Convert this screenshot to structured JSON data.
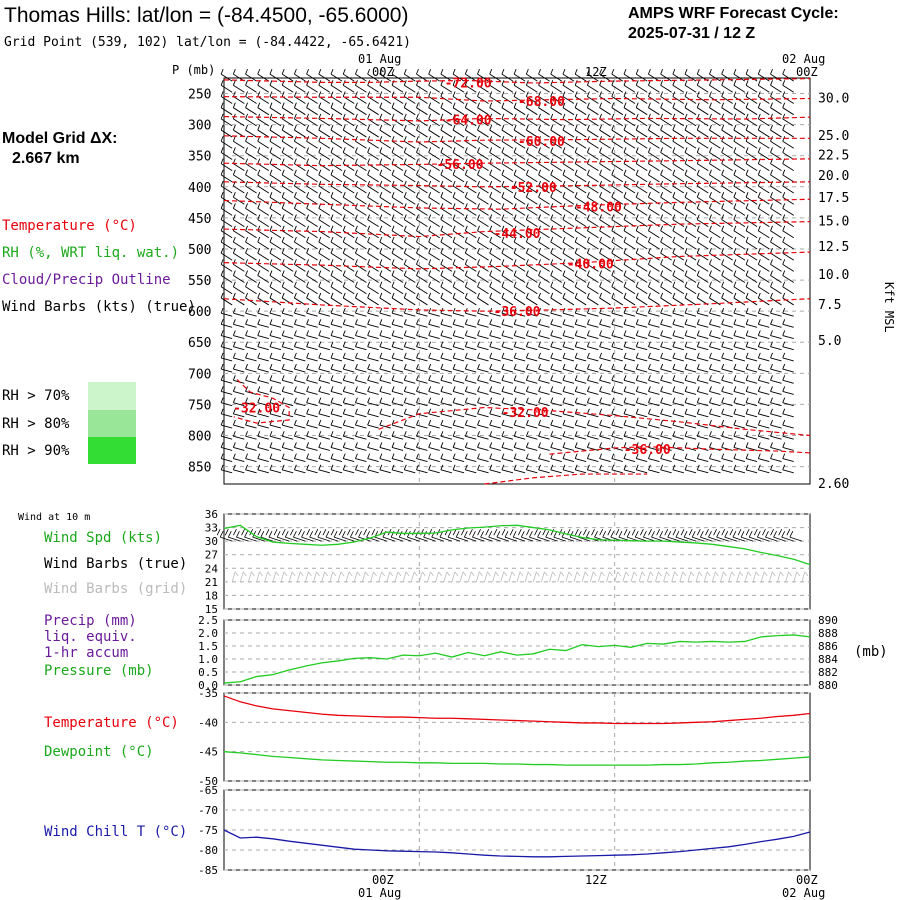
{
  "header": {
    "title": "Thomas Hills:  lat/lon = (-84.4500, -65.6000)",
    "subtitle": "Grid Point (539, 102) lat/lon = (-84.4422, -65.6421)",
    "cycle_line1": "AMPS WRF Forecast Cycle:",
    "cycle_line2": "2025-07-31 / 12  Z",
    "grid_label1": "Model Grid ΔX:",
    "grid_label2": "2.667 km"
  },
  "time_axis": {
    "top_date_mid": "01 Aug",
    "top_date_right": "02 Aug",
    "tick_labels": [
      "00Z",
      "12Z",
      "00Z"
    ],
    "bottom_date_mid": "01 Aug",
    "bottom_date_right": "02 Aug"
  },
  "legend": {
    "temperature": "Temperature (°C)",
    "rh": "RH (%, WRT liq. wat.)",
    "cloud": "Cloud/Precip Outline",
    "wind": "Wind Barbs (kts) (true)",
    "rh70": "RH > 70%",
    "rh80": "RH > 80%",
    "rh90": "RH > 90%",
    "colors": {
      "temperature": "#e8000b",
      "rh": "#1ca81c",
      "cloud": "#6a1b9a",
      "rh70": "#ccf5cc",
      "rh80": "#99e699",
      "rh90": "#33dd33",
      "pressure": "#22cc22",
      "dewpoint": "#22cc22",
      "windchill": "#1a1aa8",
      "windspd": "#22cc22",
      "grid": "#bbbbbb"
    }
  },
  "chart_data": [
    {
      "type": "line",
      "title": "",
      "panel": "upper_air_cross_section",
      "ylabel": "P (mb)",
      "y2label": "Kft MSL",
      "y_ticks": [
        250,
        300,
        350,
        400,
        450,
        500,
        550,
        600,
        650,
        700,
        750,
        800,
        850
      ],
      "y_range": [
        225,
        878
      ],
      "y2_ticks": [
        "30.0",
        "25.0",
        "22.5",
        "20.0",
        "17.5",
        "15.0",
        "12.5",
        "10.0",
        "7.5",
        "5.0",
        "2.60"
      ],
      "y2_pressure": [
        258,
        318,
        350,
        383,
        418,
        456,
        497,
        542,
        590,
        648,
        878
      ],
      "x_hours_range": [
        -12,
        24
      ],
      "temperature_contours": [
        {
          "label": "-72.00",
          "x": [
            -12,
            -6,
            -3,
            0,
            3,
            7,
            12,
            18,
            24
          ],
          "p": [
            228,
            232,
            232,
            230,
            229,
            233,
            230,
            228,
            226
          ],
          "lx": 3,
          "lp": 232
        },
        {
          "label": "-68.00",
          "x": [
            -12,
            -6,
            0,
            4,
            8,
            12,
            18,
            24
          ],
          "p": [
            255,
            256,
            256,
            262,
            260,
            258,
            260,
            258
          ],
          "lx": 7.5,
          "lp": 262
        },
        {
          "label": "-64.00",
          "x": [
            -12,
            -6,
            0,
            4,
            9,
            14,
            20,
            24
          ],
          "p": [
            287,
            290,
            294,
            290,
            292,
            290,
            291,
            288
          ],
          "lx": 3,
          "lp": 292
        },
        {
          "label": "-60.00",
          "x": [
            -12,
            -6,
            0,
            4,
            10,
            16,
            24
          ],
          "p": [
            318,
            322,
            328,
            325,
            324,
            322,
            322
          ],
          "lx": 7.5,
          "lp": 326
        },
        {
          "label": "-56.00",
          "x": [
            -12,
            -6,
            0,
            4,
            10,
            16,
            24
          ],
          "p": [
            362,
            366,
            364,
            362,
            360,
            358,
            355
          ],
          "lx": 2.5,
          "lp": 363
        },
        {
          "label": "-52.00",
          "x": [
            -12,
            -6,
            0,
            4,
            10,
            16,
            24
          ],
          "p": [
            392,
            396,
            398,
            400,
            398,
            395,
            392
          ],
          "lx": 7,
          "lp": 400
        },
        {
          "label": "-48.00",
          "x": [
            -12,
            -6,
            0,
            5,
            10,
            16,
            24
          ],
          "p": [
            422,
            428,
            434,
            436,
            430,
            425,
            420
          ],
          "lx": 11,
          "lp": 432
        },
        {
          "label": "-44.00",
          "x": [
            -12,
            -6,
            0,
            4,
            10,
            16,
            24
          ],
          "p": [
            468,
            472,
            480,
            472,
            466,
            460,
            456
          ],
          "lx": 6,
          "lp": 474
        },
        {
          "label": "-40.00",
          "x": [
            -12,
            -6,
            0,
            5,
            10,
            16,
            24
          ],
          "p": [
            522,
            526,
            532,
            528,
            522,
            512,
            505
          ],
          "lx": 10.5,
          "lp": 523
        },
        {
          "label": "-36.00",
          "x": [
            -12,
            -9,
            -6,
            -3,
            0,
            4,
            8,
            12,
            18,
            24
          ],
          "p": [
            580,
            585,
            590,
            594,
            598,
            600,
            598,
            595,
            588,
            580
          ],
          "lx": 6,
          "lp": 600
        },
        {
          "label": "-32.00",
          "x": [
            -11.2,
            -10.4,
            -9,
            -8,
            -8,
            -10,
            -11.4
          ],
          "p": [
            710,
            730,
            740,
            755,
            775,
            780,
            770
          ],
          "lx": -10,
          "lp": 755
        },
        {
          "label": "-32.00",
          "x": [
            -2.5,
            0,
            4,
            8,
            12,
            16,
            20,
            24
          ],
          "p": [
            790,
            765,
            755,
            760,
            768,
            778,
            790,
            800
          ],
          "lx": 6.5,
          "lp": 762
        },
        {
          "label": "-36.00",
          "x": [
            8,
            12,
            14,
            18,
            22,
            24
          ],
          "p": [
            830,
            820,
            818,
            822,
            825,
            828
          ],
          "lx": 14,
          "lp": 822
        },
        {
          "label": "",
          "x": [
            4,
            7,
            10,
            14
          ],
          "p": [
            878,
            868,
            862,
            862
          ],
          "lx": 0,
          "lp": 0
        }
      ]
    },
    {
      "type": "line",
      "title": "Wind at 10 m",
      "series": [
        {
          "name": "Wind Spd (kts)",
          "x": [
            -12,
            -11,
            -10,
            -9,
            -8,
            -7,
            -6,
            -5,
            -4,
            -3,
            -2,
            -1,
            0,
            1,
            2,
            3,
            4,
            5,
            6,
            7,
            8,
            9,
            10,
            11,
            12,
            13,
            14,
            15,
            16,
            17,
            18,
            19,
            20,
            21,
            22,
            23,
            24
          ],
          "values": [
            32.8,
            33.5,
            31,
            29.8,
            29.5,
            29.3,
            29.1,
            29.3,
            29.8,
            30.7,
            32,
            31.7,
            31.7,
            31.8,
            32.5,
            32.9,
            33.1,
            33.4,
            33.5,
            33.0,
            32.5,
            31.6,
            30.8,
            30.3,
            30.2,
            30.1,
            30.0,
            30.0,
            29.8,
            29.6,
            29.3,
            28.8,
            28.3,
            27.5,
            26.8,
            26.0,
            24.8
          ]
        }
      ],
      "labels": [
        "Wind Spd (kts)",
        "Wind Barbs (true)",
        "Wind Barbs (grid)"
      ],
      "y_ticks": [
        15,
        18,
        21,
        24,
        27,
        30,
        33,
        36
      ],
      "ylim": [
        15,
        36
      ]
    },
    {
      "type": "line",
      "title": "",
      "labels": [
        "Precip (mm)",
        "liq. equiv.",
        "1-hr accum",
        "Pressure (mb)"
      ],
      "series": [
        {
          "name": "Pressure (mb)",
          "x": [
            -12,
            -11,
            -10,
            -9,
            -8,
            -7,
            -6,
            -5,
            -4,
            -3,
            -2,
            -1,
            0,
            1,
            2,
            3,
            4,
            5,
            6,
            7,
            8,
            9,
            10,
            11,
            12,
            13,
            14,
            15,
            16,
            17,
            18,
            19,
            20,
            21,
            22,
            23,
            24
          ],
          "values": [
            880.3,
            880.5,
            881.3,
            881.6,
            882.3,
            882.9,
            883.4,
            883.7,
            884.1,
            884.2,
            884.0,
            884.6,
            884.5,
            884.9,
            884.3,
            885.0,
            884.5,
            885.1,
            884.6,
            884.8,
            885.5,
            885.3,
            886.2,
            885.9,
            886.1,
            885.8,
            886.4,
            886.3,
            886.7,
            886.6,
            886.7,
            886.6,
            886.7,
            887.4,
            887.6,
            887.7,
            887.4
          ]
        }
      ],
      "y_ticks_left": [
        "0.0",
        "0.5",
        "1.0",
        "1.5",
        "2.0",
        "2.5"
      ],
      "y_ticks_right": [
        "880",
        "882",
        "884",
        "886",
        "888",
        "890"
      ],
      "y2label": "(mb)",
      "ylim": [
        0,
        2.5
      ],
      "y2lim": [
        880,
        890
      ]
    },
    {
      "type": "line",
      "title": "",
      "series": [
        {
          "name": "Temperature (°C)",
          "x": [
            -12,
            -11,
            -10,
            -9,
            -8,
            -7,
            -6,
            -5,
            -4,
            -3,
            -2,
            -1,
            0,
            1,
            2,
            3,
            4,
            5,
            6,
            7,
            8,
            9,
            10,
            11,
            12,
            13,
            14,
            15,
            16,
            17,
            18,
            19,
            20,
            21,
            22,
            23,
            24
          ],
          "values": [
            -35.5,
            -36.5,
            -37.2,
            -37.7,
            -38.0,
            -38.3,
            -38.6,
            -38.8,
            -38.9,
            -39.0,
            -39.1,
            -39.1,
            -39.2,
            -39.3,
            -39.3,
            -39.4,
            -39.5,
            -39.6,
            -39.7,
            -39.8,
            -39.9,
            -40.0,
            -40.1,
            -40.1,
            -40.2,
            -40.2,
            -40.2,
            -40.2,
            -40.1,
            -40.0,
            -39.9,
            -39.7,
            -39.5,
            -39.3,
            -39.0,
            -38.8,
            -38.5
          ]
        },
        {
          "name": "Dewpoint (°C)",
          "x": [
            -12,
            -11,
            -10,
            -9,
            -8,
            -7,
            -6,
            -5,
            -4,
            -3,
            -2,
            -1,
            0,
            1,
            2,
            3,
            4,
            5,
            6,
            7,
            8,
            9,
            10,
            11,
            12,
            13,
            14,
            15,
            16,
            17,
            18,
            19,
            20,
            21,
            22,
            23,
            24
          ],
          "values": [
            -45.0,
            -45.2,
            -45.5,
            -45.8,
            -46.0,
            -46.2,
            -46.4,
            -46.5,
            -46.6,
            -46.7,
            -46.8,
            -46.8,
            -46.9,
            -46.9,
            -47.0,
            -47.0,
            -47.0,
            -47.1,
            -47.1,
            -47.2,
            -47.2,
            -47.3,
            -47.3,
            -47.3,
            -47.3,
            -47.3,
            -47.3,
            -47.2,
            -47.2,
            -47.1,
            -46.9,
            -46.8,
            -46.6,
            -46.5,
            -46.3,
            -46.1,
            -45.9
          ]
        }
      ],
      "y_ticks": [
        -50,
        -45,
        -40,
        -35
      ],
      "ylim": [
        -50,
        -35
      ]
    },
    {
      "type": "line",
      "title": "",
      "series": [
        {
          "name": "Wind Chill T (°C)",
          "x": [
            -12,
            -11,
            -10,
            -9,
            -8,
            -7,
            -6,
            -5,
            -4,
            -3,
            -2,
            -1,
            0,
            1,
            2,
            3,
            4,
            5,
            6,
            7,
            8,
            9,
            10,
            11,
            12,
            13,
            14,
            15,
            16,
            17,
            18,
            19,
            20,
            21,
            22,
            23,
            24
          ],
          "values": [
            -75.0,
            -77.0,
            -76.8,
            -77.2,
            -77.8,
            -78.3,
            -78.8,
            -79.3,
            -79.8,
            -80.0,
            -80.2,
            -80.3,
            -80.4,
            -80.5,
            -80.7,
            -81.0,
            -81.3,
            -81.5,
            -81.6,
            -81.7,
            -81.7,
            -81.6,
            -81.5,
            -81.4,
            -81.3,
            -81.2,
            -81.0,
            -80.7,
            -80.4,
            -80.0,
            -79.6,
            -79.2,
            -78.6,
            -77.9,
            -77.3,
            -76.6,
            -75.5
          ]
        }
      ],
      "y_ticks": [
        -85,
        -80,
        -75,
        -70,
        -65
      ],
      "ylim": [
        -85,
        -65
      ]
    }
  ]
}
